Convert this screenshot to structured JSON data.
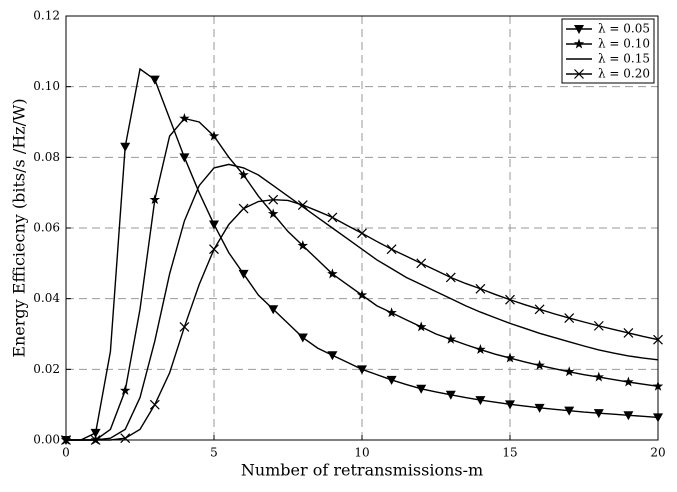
{
  "chart_data": {
    "type": "line",
    "xlabel": "Number of retransmissions-m",
    "ylabel": "Energy Efficiecny (bits/s /Hz/W)",
    "x": [
      0,
      0.5,
      1,
      1.5,
      2,
      2.5,
      3,
      3.5,
      4,
      4.5,
      5,
      5.5,
      6,
      6.5,
      7,
      7.5,
      8,
      8.5,
      9,
      9.5,
      10,
      10.5,
      11,
      11.5,
      12,
      12.5,
      13,
      13.5,
      14,
      14.5,
      15,
      15.5,
      16,
      16.5,
      17,
      17.5,
      18,
      18.5,
      19,
      19.5,
      20
    ],
    "series": [
      {
        "name": "λ = 0.05",
        "color": "#000000",
        "marker": "triangle",
        "values": [
          0,
          0,
          0.002,
          0.025,
          0.083,
          0.105,
          0.102,
          0.091,
          0.08,
          0.07,
          0.061,
          0.053,
          0.047,
          0.041,
          0.037,
          0.033,
          0.029,
          0.026,
          0.024,
          0.022,
          0.02,
          0.0185,
          0.017,
          0.0157,
          0.0145,
          0.0136,
          0.0128,
          0.012,
          0.0113,
          0.0107,
          0.0101,
          0.0096,
          0.0091,
          0.0087,
          0.0083,
          0.0079,
          0.0076,
          0.0073,
          0.007,
          0.0067,
          0.0064
        ]
      },
      {
        "name": "λ = 0.10",
        "color": "#000000",
        "marker": "star",
        "values": [
          0,
          0,
          0,
          0.003,
          0.014,
          0.037,
          0.068,
          0.086,
          0.091,
          0.09,
          0.086,
          0.08,
          0.075,
          0.069,
          0.064,
          0.059,
          0.055,
          0.051,
          0.047,
          0.044,
          0.041,
          0.038,
          0.036,
          0.034,
          0.032,
          0.03,
          0.0285,
          0.027,
          0.0256,
          0.0243,
          0.0232,
          0.0221,
          0.0211,
          0.0202,
          0.0193,
          0.0185,
          0.0178,
          0.0171,
          0.0164,
          0.0158,
          0.0152
        ]
      },
      {
        "name": "λ = 0.15",
        "color": "#000000",
        "values": [
          0,
          0,
          0,
          0.0005,
          0.003,
          0.012,
          0.028,
          0.047,
          0.062,
          0.072,
          0.077,
          0.078,
          0.077,
          0.075,
          0.072,
          0.069,
          0.066,
          0.063,
          0.06,
          0.057,
          0.054,
          0.051,
          0.0485,
          0.046,
          0.044,
          0.042,
          0.04,
          0.038,
          0.0362,
          0.0346,
          0.033,
          0.0316,
          0.0302,
          0.029,
          0.0278,
          0.0266,
          0.0255,
          0.0246,
          0.0238,
          0.0232,
          0.0227
        ]
      },
      {
        "name": "λ = 0.20",
        "color": "#000000",
        "marker": "cross",
        "values": [
          0,
          0,
          0,
          0,
          0.0005,
          0.003,
          0.01,
          0.019,
          0.032,
          0.044,
          0.054,
          0.061,
          0.0655,
          0.0675,
          0.068,
          0.0678,
          0.0665,
          0.0648,
          0.063,
          0.0607,
          0.0585,
          0.0562,
          0.054,
          0.052,
          0.05,
          0.048,
          0.046,
          0.0443,
          0.0428,
          0.0412,
          0.0397,
          0.0383,
          0.037,
          0.0357,
          0.0345,
          0.0334,
          0.0323,
          0.0313,
          0.0303,
          0.0293,
          0.0284
        ]
      }
    ],
    "xlim": [
      0,
      20
    ],
    "xticks": [
      0,
      5,
      10,
      15,
      20
    ],
    "ylim": [
      0,
      0.12
    ],
    "yticks": [
      {
        "value": 0,
        "label": "0.00"
      },
      {
        "value": 0.02,
        "label": "0.02"
      },
      {
        "value": 0.04,
        "label": "0.04"
      },
      {
        "value": 0.06,
        "label": "0.06"
      },
      {
        "value": 0.08,
        "label": "0.08"
      },
      {
        "value": 0.1,
        "label": "0.10"
      },
      {
        "value": 0.12,
        "label": "0.12"
      }
    ],
    "grid": true,
    "legend": "upper right"
  }
}
